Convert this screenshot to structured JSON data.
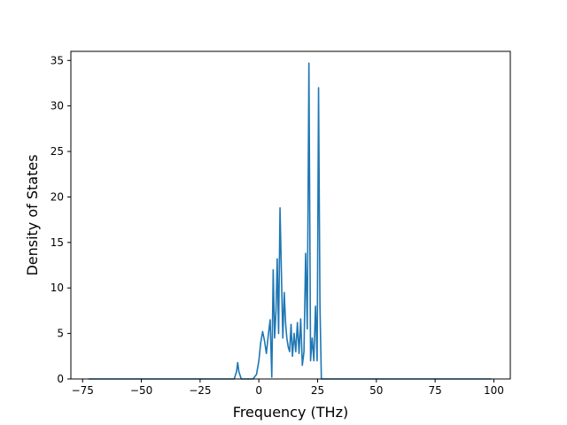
{
  "chart_data": {
    "type": "line",
    "title": "",
    "xlabel": "Frequency (THz)",
    "ylabel": "Density of States",
    "xlim": [
      -80,
      107
    ],
    "ylim": [
      0,
      36
    ],
    "xticks": [
      -75,
      -50,
      -25,
      0,
      25,
      50,
      75,
      100
    ],
    "yticks": [
      0,
      5,
      10,
      15,
      20,
      25,
      30,
      35
    ],
    "xtick_labels": [
      "−75",
      "−50",
      "−25",
      "0",
      "25",
      "50",
      "75",
      "100"
    ],
    "ytick_labels": [
      "0",
      "5",
      "10",
      "15",
      "20",
      "25",
      "30",
      "35"
    ],
    "grid": false,
    "legend": "none",
    "color": "#1f77b4",
    "series": [
      {
        "x": [
          -72.5,
          -60,
          -40,
          -20,
          -10.5,
          -9.5,
          -9.0,
          -8.5,
          -7.5,
          -6.5,
          -2.5,
          -1.0,
          0.0,
          0.8,
          1.6,
          2.4,
          3.2,
          4.0,
          4.8,
          5.5,
          6.1,
          6.7,
          7.3,
          7.8,
          8.4,
          9.0,
          9.6,
          10.2,
          10.8,
          11.4,
          11.9,
          12.5,
          13.1,
          13.7,
          14.3,
          15.0,
          15.7,
          16.4,
          17.1,
          17.8,
          18.5,
          19.2,
          19.9,
          20.6,
          21.3,
          22.0,
          22.7,
          23.4,
          24.1,
          24.8,
          25.4,
          26.0,
          26.6,
          27.2,
          27.8,
          28.4,
          29.0,
          29.6,
          30.2,
          30.8,
          31.4,
          32.0,
          32.6,
          33.2,
          33.8,
          34.5,
          40,
          60,
          80,
          99
        ],
        "y": [
          0,
          0,
          0,
          0,
          0,
          0.8,
          1.8,
          0.8,
          0,
          0,
          0,
          0.5,
          2.0,
          4.0,
          5.2,
          4.2,
          2.8,
          4.8,
          6.5,
          0.2,
          12.0,
          4.5,
          7.5,
          13.2,
          5.0,
          18.8,
          11.5,
          4.5,
          9.5,
          6.0,
          4.5,
          3.5,
          3.0,
          6.0,
          2.5,
          5.0,
          3.0,
          6.2,
          2.8,
          6.6,
          1.5,
          3.0,
          13.8,
          5.5,
          34.7,
          2.0,
          4.5,
          2.0,
          8.0,
          2.0,
          32.0,
          8.0,
          0.0,
          0,
          0,
          0,
          0,
          0,
          0,
          0,
          0,
          0,
          0,
          0,
          0,
          0,
          0,
          0,
          0,
          0
        ]
      }
    ]
  }
}
